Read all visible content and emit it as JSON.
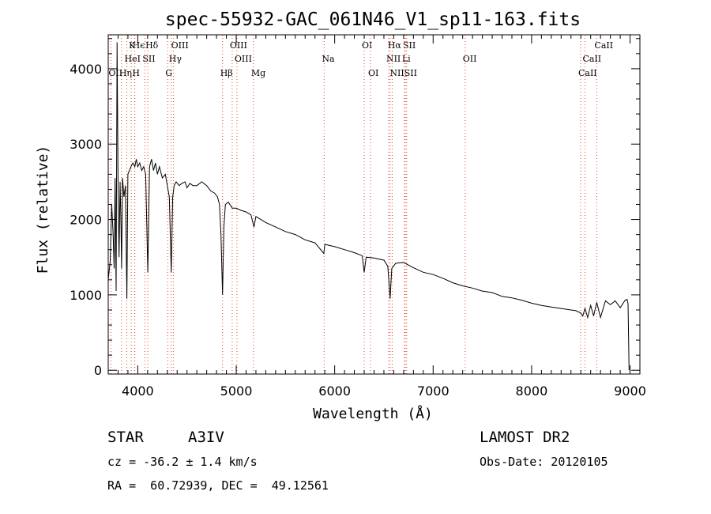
{
  "chart_data": {
    "type": "line",
    "title": "spec-55932-GAC_061N46_V1_sp11-163.fits",
    "xlabel": "Wavelength (Å)",
    "ylabel": "Flux (relative)",
    "xlim": [
      3700,
      9100
    ],
    "ylim": [
      -50,
      4450
    ],
    "xticks": [
      "4000",
      "5000",
      "6000",
      "7000",
      "8000",
      "9000"
    ],
    "yticks": [
      "0",
      "1000",
      "2000",
      "3000",
      "4000"
    ],
    "grid": false,
    "series": [
      {
        "x": [
          3700,
          3720,
          3735,
          3750,
          3760,
          3770,
          3780,
          3790,
          3800,
          3810,
          3820,
          3830,
          3836,
          3845,
          3860,
          3875,
          3889,
          3900,
          3915,
          3930,
          3950,
          3970,
          3985,
          4000,
          4020,
          4040,
          4060,
          4080,
          4102,
          4120,
          4140,
          4160,
          4180,
          4200,
          4220,
          4250,
          4280,
          4300,
          4320,
          4340,
          4355,
          4370,
          4390,
          4420,
          4450,
          4480,
          4500,
          4530,
          4560,
          4600,
          4650,
          4700,
          4740,
          4780,
          4810,
          4830,
          4845,
          4861,
          4875,
          4890,
          4920,
          4960,
          5000,
          5050,
          5100,
          5150,
          5180,
          5200,
          5250,
          5300,
          5400,
          5500,
          5600,
          5700,
          5800,
          5890,
          5900,
          6000,
          6100,
          6200,
          6280,
          6300,
          6320,
          6400,
          6500,
          6540,
          6563,
          6580,
          6620,
          6700,
          6800,
          6900,
          7000,
          7100,
          7200,
          7300,
          7400,
          7500,
          7600,
          7700,
          7800,
          7900,
          8000,
          8100,
          8200,
          8300,
          8400,
          8450,
          8498,
          8520,
          8542,
          8570,
          8600,
          8630,
          8662,
          8700,
          8750,
          8800,
          8850,
          8900,
          8950,
          8970,
          8980,
          8990
        ],
        "values": [
          1200,
          1450,
          2200,
          1800,
          1350,
          2550,
          1050,
          4350,
          2400,
          1500,
          2500,
          1900,
          1350,
          2550,
          2300,
          2450,
          950,
          2600,
          2650,
          2700,
          2750,
          2700,
          2800,
          2700,
          2750,
          2650,
          2700,
          2600,
          1300,
          2700,
          2800,
          2650,
          2750,
          2600,
          2700,
          2550,
          2600,
          2450,
          2300,
          1300,
          2300,
          2450,
          2500,
          2450,
          2480,
          2500,
          2420,
          2480,
          2450,
          2450,
          2500,
          2450,
          2380,
          2350,
          2300,
          2200,
          1800,
          1000,
          1900,
          2200,
          2230,
          2150,
          2150,
          2120,
          2100,
          2060,
          1900,
          2040,
          2000,
          1960,
          1900,
          1840,
          1800,
          1730,
          1690,
          1550,
          1670,
          1640,
          1600,
          1560,
          1520,
          1300,
          1500,
          1490,
          1460,
          1380,
          950,
          1350,
          1420,
          1430,
          1360,
          1300,
          1270,
          1220,
          1160,
          1120,
          1090,
          1050,
          1030,
          980,
          960,
          930,
          890,
          860,
          840,
          820,
          800,
          790,
          760,
          720,
          820,
          700,
          860,
          720,
          900,
          700,
          920,
          870,
          920,
          830,
          930,
          940,
          880,
          0
        ]
      }
    ],
    "lines": [
      {
        "label": "Hϵ",
        "wl": 3970,
        "row": 0
      },
      {
        "label": "K",
        "wl": 3934,
        "row": 0
      },
      {
        "label": "Hδ",
        "wl": 4102,
        "row": 0
      },
      {
        "label": "OIII",
        "wl": 4363,
        "row": 0
      },
      {
        "label": "OIII",
        "wl": 4959,
        "row": 0
      },
      {
        "label": "OI",
        "wl": 6300,
        "row": 0
      },
      {
        "label": "Hα",
        "wl": 6563,
        "row": 0
      },
      {
        "label": "SII",
        "wl": 6717,
        "row": 0
      },
      {
        "label": "CaII",
        "wl": 8662,
        "row": 0
      },
      {
        "label": "HeI",
        "wl": 3889,
        "row": 1
      },
      {
        "label": "SII",
        "wl": 4072,
        "row": 1
      },
      {
        "label": "Hγ",
        "wl": 4340,
        "row": 1
      },
      {
        "label": "OIII",
        "wl": 5007,
        "row": 1
      },
      {
        "label": "Na",
        "wl": 5893,
        "row": 1
      },
      {
        "label": "NII",
        "wl": 6548,
        "row": 1
      },
      {
        "label": "Li",
        "wl": 6708,
        "row": 1
      },
      {
        "label": "OII",
        "wl": 7325,
        "row": 1
      },
      {
        "label": "CaII",
        "wl": 8542,
        "row": 1
      },
      {
        "label": "OII",
        "wl": 3727,
        "row": 2
      },
      {
        "label": "Hη",
        "wl": 3835,
        "row": 2
      },
      {
        "label": "H",
        "wl": 3968,
        "row": 2
      },
      {
        "label": "G",
        "wl": 4304,
        "row": 2
      },
      {
        "label": "Hβ",
        "wl": 4861,
        "row": 2
      },
      {
        "label": "Mg",
        "wl": 5175,
        "row": 2
      },
      {
        "label": "OI",
        "wl": 6364,
        "row": 2
      },
      {
        "label": "NII",
        "wl": 6584,
        "row": 2
      },
      {
        "label": "SII",
        "wl": 6731,
        "row": 2
      },
      {
        "label": "CaII",
        "wl": 8498,
        "row": 2
      }
    ],
    "colors": {
      "spectrum": "#000000",
      "line_markers": "#e8442c"
    }
  },
  "info": {
    "obj_class": "STAR",
    "subclass": "A3IV",
    "cz": "cz = -36.2 ± 1.4 km/s",
    "coords": "RA =  60.72939, DEC =  49.12561",
    "survey": "LAMOST DR2",
    "obs_date": "Obs-Date: 20120105"
  }
}
